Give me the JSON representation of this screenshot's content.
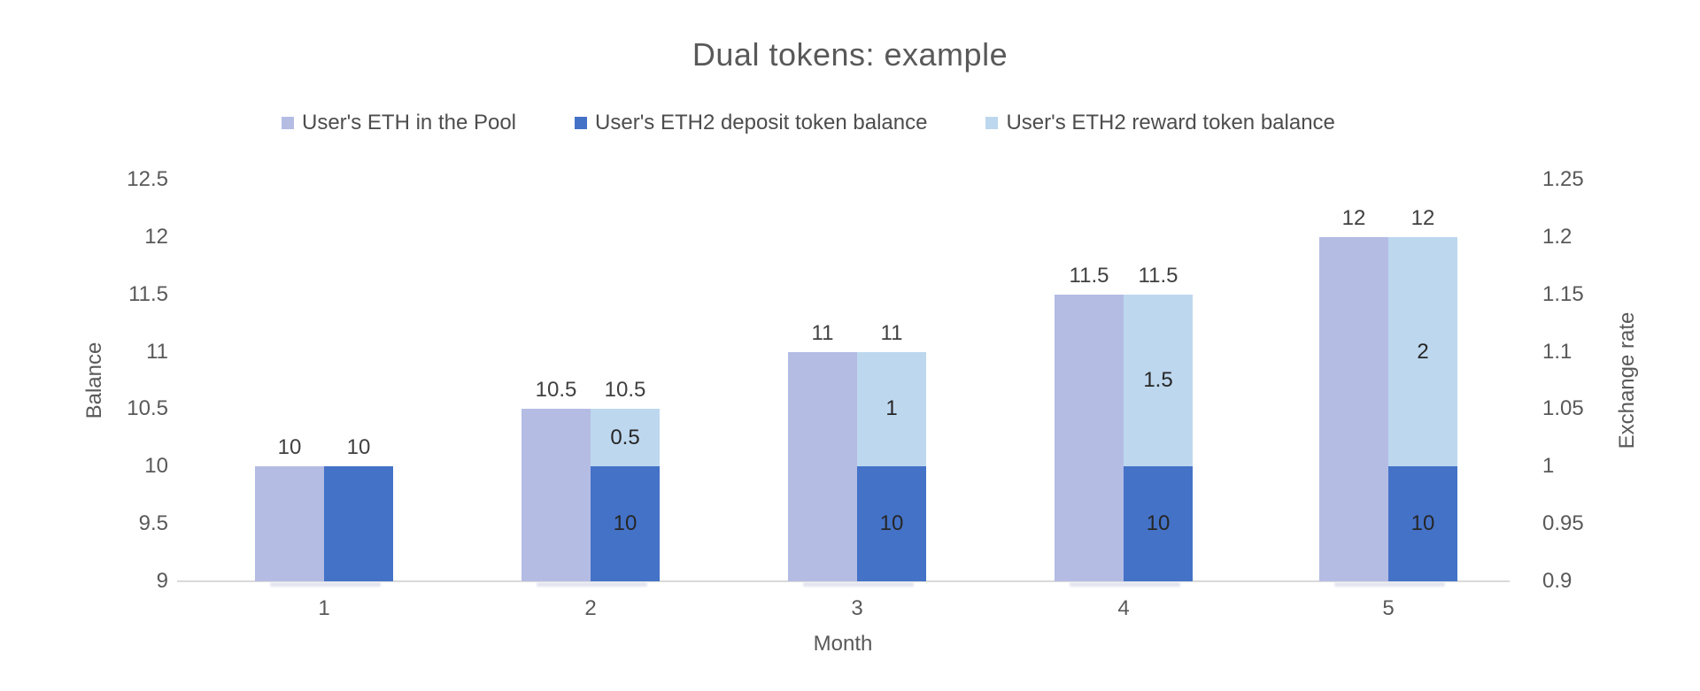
{
  "page": {
    "background": "#ffffff"
  },
  "chart_data": {
    "type": "bar",
    "title": "Dual tokens: example",
    "xlabel": "Month",
    "categories": [
      "1",
      "2",
      "3",
      "4",
      "5"
    ],
    "left_axis": {
      "label": "Balance",
      "min": 9,
      "max": 12.5,
      "step": 0.5,
      "ticks": [
        "12.5",
        "12",
        "11.5",
        "11",
        "10.5",
        "10",
        "9.5",
        "9"
      ]
    },
    "right_axis": {
      "label": "Exchange rate",
      "min": 0.9,
      "max": 1.25,
      "step": 0.05,
      "ticks": [
        "1.25",
        "1.2",
        "1.15",
        "1.1",
        "1.05",
        "1",
        "0.95",
        "0.9"
      ]
    },
    "series": [
      {
        "name": "User's ETH in the Pool",
        "color": "#b4bce4",
        "layout": "clustered",
        "values": [
          10,
          10.5,
          11,
          11.5,
          12
        ],
        "labels_above": [
          "10",
          "10.5",
          "11",
          "11.5",
          "12"
        ]
      },
      {
        "name": "User's ETH2 deposit token balance",
        "color": "#4472c7",
        "layout": "stack-base",
        "values": [
          10,
          10,
          10,
          10,
          10
        ],
        "labels_inside": [
          "",
          "10",
          "10",
          "10",
          "10"
        ]
      },
      {
        "name": "User's ETH2 reward token balance",
        "color": "#bdd7ee",
        "layout": "stack-top",
        "values": [
          0,
          0.5,
          1,
          1.5,
          2
        ],
        "labels_inside": [
          "",
          "0.5",
          "1",
          "1.5",
          "2"
        ]
      }
    ],
    "stack_labels_above": [
      "10",
      "10.5",
      "11",
      "11.5",
      "12"
    ],
    "styles": {
      "title_color": "#595959",
      "tick_color": "#595959",
      "axis_title_color": "#595959",
      "label_above_color": "#404040",
      "label_inside_color": "#262626",
      "legend_text_color": "#4d4d4d",
      "baseline_color": "#d9d9d9"
    },
    "legend_position": "top",
    "grid": "off"
  }
}
